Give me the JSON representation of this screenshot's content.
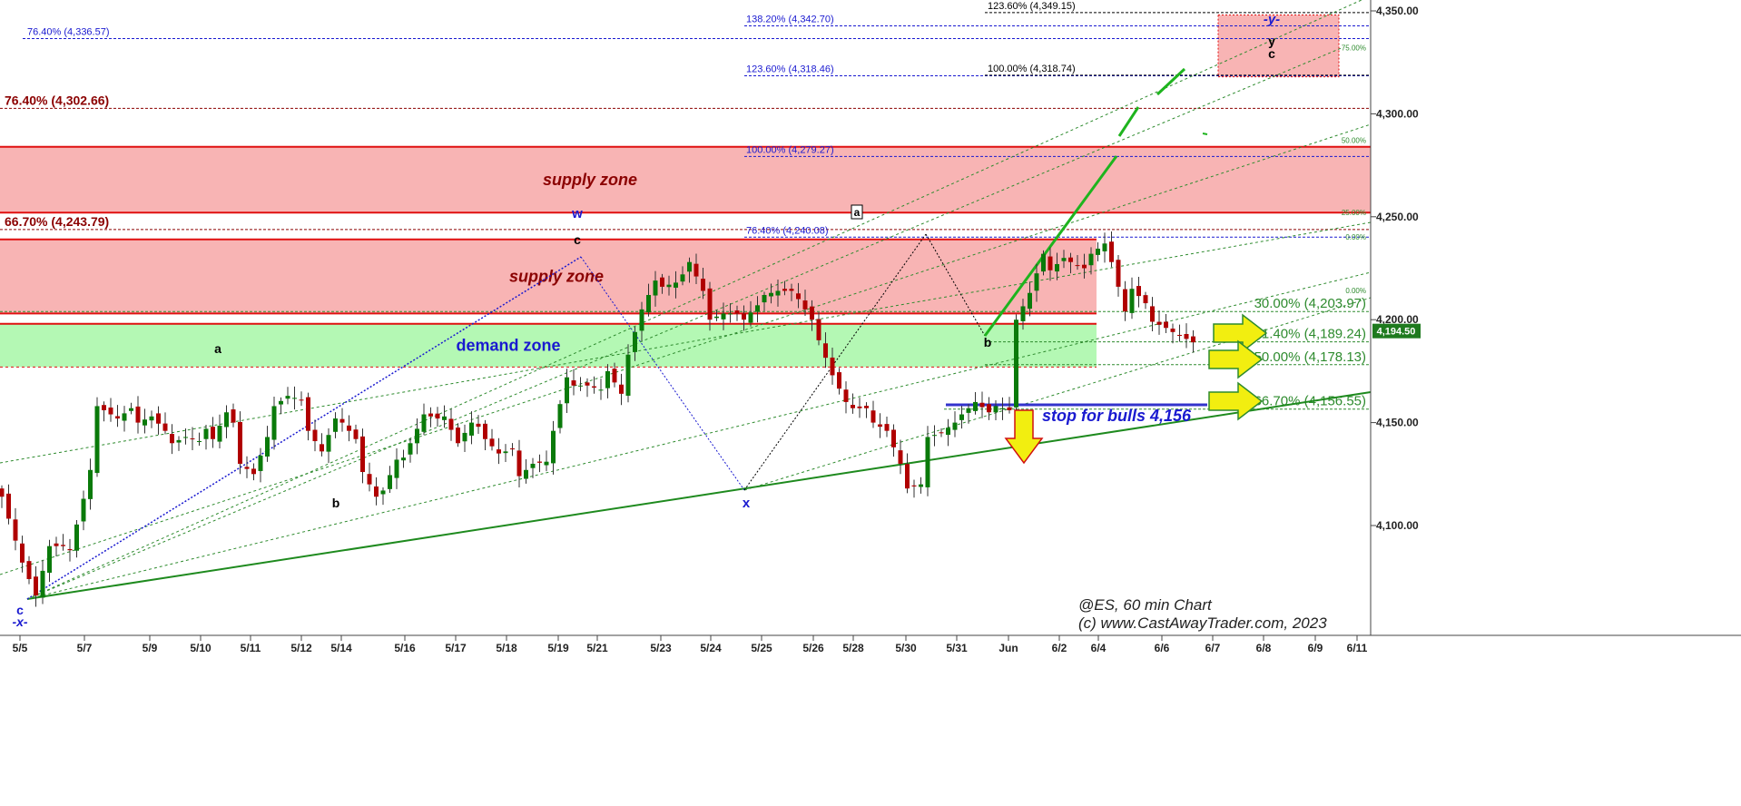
{
  "chart_data": {
    "type": "candlestick",
    "symbol_label": "@ES, 60 min Chart",
    "copyright": "(c) www.CastAwayTrader.com, 2023",
    "y_ticks": [
      {
        "value": 4100,
        "label": "4,100.00"
      },
      {
        "value": 4150,
        "label": "4,150.00"
      },
      {
        "value": 4200,
        "label": "4,200.00"
      },
      {
        "value": 4250,
        "label": "4,250.00"
      },
      {
        "value": 4300,
        "label": "4,300.00"
      },
      {
        "value": 4350,
        "label": "4,350.00"
      }
    ],
    "ylim": [
      4050,
      4360
    ],
    "x_ticks": [
      "5/5",
      "5/7",
      "5/9",
      "5/10",
      "5/11",
      "5/12",
      "5/14",
      "5/16",
      "5/17",
      "5/18",
      "5/19",
      "5/21",
      "5/23",
      "5/24",
      "5/25",
      "5/26",
      "5/28",
      "5/30",
      "5/31",
      "Jun",
      "6/2",
      "6/4",
      "6/6",
      "6/7",
      "6/8",
      "6/9",
      "6/11"
    ],
    "last_price": {
      "value": 4194.5,
      "label": "4,194.50"
    },
    "zones": [
      {
        "label": "supply zone",
        "from": 4252,
        "to": 4284,
        "color": "#f8b4b4"
      },
      {
        "label": "supply zone",
        "from": 4203,
        "to": 4239,
        "color": "#f8b4b4"
      },
      {
        "label": "demand zone",
        "from": 4177,
        "to": 4198,
        "color": "#b4f8b4"
      },
      {
        "label": "",
        "from": 4318,
        "to": 4348,
        "color": "#f8b4b4"
      }
    ],
    "fib_levels": [
      {
        "label": "76.40% (4,336.57)",
        "value": 4336.57,
        "color": "#1a1ad0"
      },
      {
        "label": "76.40% (4,302.66)",
        "value": 4302.66,
        "color": "#8b0000"
      },
      {
        "label": "66.70% (4,243.79)",
        "value": 4243.79,
        "color": "#8b0000"
      },
      {
        "label": "138.20% (4,342.70)",
        "value": 4342.7,
        "color": "#1a1ad0"
      },
      {
        "label": "123.60% (4,318.46)",
        "value": 4318.46,
        "color": "#1a1ad0"
      },
      {
        "label": "100.00% (4,279.27)",
        "value": 4279.27,
        "color": "#1a1ad0"
      },
      {
        "label": "76.40% (4,240.08)",
        "value": 4240.08,
        "color": "#1a1ad0"
      },
      {
        "label": "123.60% (4,349.15)",
        "value": 4349.15,
        "color": "#000000"
      },
      {
        "label": "100.00% (4,318.74)",
        "value": 4318.74,
        "color": "#000000"
      },
      {
        "label": "30.00% (4,203.97)",
        "value": 4203.97,
        "color": "#2e8b2e"
      },
      {
        "label": "41.40% (4,189.24)",
        "value": 4189.24,
        "color": "#2e8b2e"
      },
      {
        "label": "50.00% (4,178.13)",
        "value": 4178.13,
        "color": "#2e8b2e"
      },
      {
        "label": "66.70% (4,156.55)",
        "value": 4156.55,
        "color": "#2e8b2e"
      }
    ],
    "small_levels": [
      "100.00%",
      "75.00%",
      "50.00%",
      "25.00%",
      "0.00%",
      "0.00%"
    ],
    "wave_labels": [
      "w",
      "c",
      "a",
      "b",
      "x",
      "a",
      "b",
      "c",
      "-x-",
      "-y-",
      "y",
      "c"
    ],
    "stop_text": "stop for bulls 4,156",
    "candle_path": [
      [
        0,
        4114
      ],
      [
        3,
        4082
      ],
      [
        5,
        4066
      ],
      [
        7,
        4090
      ],
      [
        9,
        4090
      ],
      [
        10,
        4088
      ],
      [
        12,
        4113
      ],
      [
        13,
        4127
      ],
      [
        14,
        4158
      ],
      [
        16,
        4154
      ],
      [
        17,
        4152
      ],
      [
        19,
        4157
      ],
      [
        20,
        4150
      ],
      [
        22,
        4153
      ],
      [
        24,
        4146
      ],
      [
        25,
        4140
      ],
      [
        27,
        4143
      ],
      [
        29,
        4141
      ],
      [
        30,
        4147
      ],
      [
        31,
        4142
      ],
      [
        33,
        4155
      ],
      [
        34,
        4150
      ],
      [
        35,
        4130
      ],
      [
        37,
        4125
      ],
      [
        39,
        4143
      ],
      [
        40,
        4158
      ],
      [
        42,
        4163
      ],
      [
        44,
        4161
      ],
      [
        45,
        4146
      ],
      [
        47,
        4136
      ],
      [
        49,
        4152
      ],
      [
        50,
        4150
      ],
      [
        52,
        4142
      ],
      [
        53,
        4126
      ],
      [
        55,
        4114
      ],
      [
        56,
        4117
      ],
      [
        58,
        4132
      ],
      [
        59,
        4133
      ],
      [
        61,
        4147
      ],
      [
        62,
        4154
      ],
      [
        64,
        4152
      ],
      [
        65,
        4153
      ],
      [
        67,
        4140
      ],
      [
        69,
        4150
      ],
      [
        70,
        4148
      ],
      [
        71,
        4142
      ],
      [
        73,
        4135
      ],
      [
        75,
        4137
      ],
      [
        76,
        4124
      ],
      [
        78,
        4130
      ],
      [
        80,
        4131
      ],
      [
        81,
        4146
      ],
      [
        83,
        4172
      ],
      [
        84,
        4168
      ],
      [
        86,
        4168
      ],
      [
        88,
        4166
      ],
      [
        89,
        4175
      ],
      [
        91,
        4164
      ],
      [
        92,
        4183
      ],
      [
        94,
        4205
      ],
      [
        96,
        4219
      ],
      [
        97,
        4216
      ],
      [
        99,
        4218
      ],
      [
        100,
        4222
      ],
      [
        101,
        4228
      ],
      [
        103,
        4214
      ],
      [
        104,
        4200
      ],
      [
        106,
        4203
      ],
      [
        108,
        4203
      ],
      [
        109,
        4200
      ],
      [
        111,
        4207
      ],
      [
        112,
        4212
      ],
      [
        114,
        4214
      ],
      [
        116,
        4214
      ],
      [
        117,
        4210
      ],
      [
        119,
        4200
      ],
      [
        120,
        4190
      ],
      [
        122,
        4173
      ],
      [
        124,
        4160
      ],
      [
        125,
        4157
      ],
      [
        127,
        4157
      ],
      [
        128,
        4150
      ],
      [
        130,
        4146
      ],
      [
        132,
        4130
      ],
      [
        133,
        4118
      ],
      [
        135,
        4120
      ],
      [
        136,
        4143
      ],
      [
        138,
        4145
      ],
      [
        140,
        4150
      ],
      [
        141,
        4154
      ],
      [
        143,
        4160
      ],
      [
        145,
        4155
      ],
      [
        146,
        4158
      ],
      [
        148,
        4156
      ],
      [
        149,
        4200
      ],
      [
        151,
        4213
      ],
      [
        153,
        4232
      ],
      [
        154,
        4224
      ],
      [
        156,
        4230
      ],
      [
        157,
        4228
      ],
      [
        159,
        4225
      ],
      [
        160,
        4232
      ],
      [
        162,
        4237
      ],
      [
        163,
        4228
      ],
      [
        165,
        4204
      ],
      [
        166,
        4215
      ],
      [
        168,
        4208
      ],
      [
        169,
        4199
      ],
      [
        171,
        4196
      ],
      [
        172,
        4194
      ],
      [
        175,
        4189
      ]
    ]
  }
}
